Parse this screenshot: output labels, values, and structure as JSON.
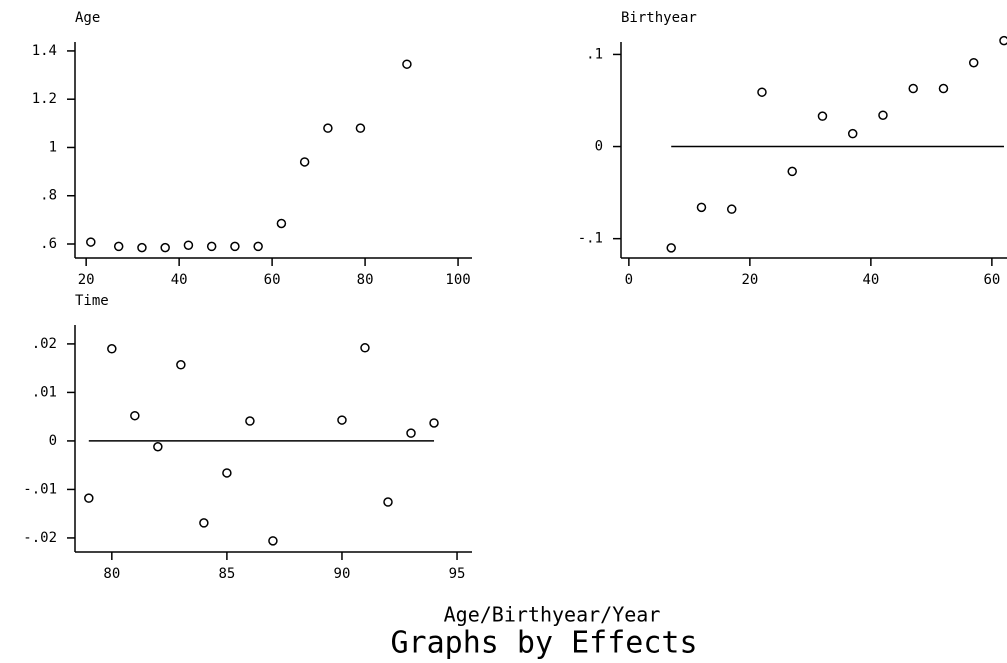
{
  "chart_data": [
    {
      "type": "scatter",
      "title": "Age",
      "x": [
        21,
        27,
        32,
        37,
        42,
        47,
        52,
        57,
        62,
        67,
        72,
        79,
        89
      ],
      "values": [
        0.608,
        0.59,
        0.585,
        0.585,
        0.595,
        0.59,
        0.59,
        0.59,
        0.685,
        0.94,
        1.08,
        1.08,
        1.345
      ],
      "color": "#000000",
      "xlim": [
        17.6,
        103
      ],
      "ylim": [
        0.542,
        1.437
      ],
      "xticks": [
        20,
        40,
        60,
        80,
        100
      ],
      "yticks": [
        {
          "value": 0.6,
          "label": ".6"
        },
        {
          "value": 0.8,
          "label": ".8"
        },
        1,
        1.2,
        1.4
      ]
    },
    {
      "type": "scatter",
      "title": "Birthyear",
      "x": [
        7,
        12,
        17,
        22,
        27,
        32,
        37,
        42,
        47,
        52,
        57,
        62
      ],
      "values": [
        -0.11,
        -0.066,
        -0.068,
        0.059,
        -0.027,
        0.033,
        0.014,
        0.034,
        0.063,
        0.063,
        0.091,
        0.115
      ],
      "color": "#000000",
      "reference_line": 0,
      "xlim": [
        -1.3,
        62.5
      ],
      "ylim": [
        -0.121,
        0.1135
      ],
      "xticks": [
        0,
        20,
        40,
        60
      ],
      "yticks": [
        {
          "value": -0.1,
          "label": "-.1"
        },
        0,
        {
          "value": 0.1,
          "label": ".1"
        }
      ]
    },
    {
      "type": "scatter",
      "title": "Time",
      "x": [
        79,
        80,
        81,
        82,
        83,
        84,
        85,
        86,
        87,
        90,
        91,
        92,
        93,
        94
      ],
      "values": [
        -0.0118,
        0.019,
        0.0052,
        -0.0012,
        0.0157,
        -0.0169,
        -0.0066,
        0.0041,
        -0.0206,
        0.0043,
        0.0192,
        -0.0126,
        0.0016,
        0.0037
      ],
      "color": "#000000",
      "reference_line": 0,
      "xlim": [
        78.4,
        95.65
      ],
      "ylim": [
        -0.0229,
        0.0239
      ],
      "xticks": [
        80,
        85,
        90,
        95
      ],
      "yticks": [
        {
          "value": -0.02,
          "label": "-.02"
        },
        {
          "value": -0.01,
          "label": "-.01"
        },
        0,
        {
          "value": 0.01,
          "label": ".01"
        },
        {
          "value": 0.02,
          "label": ".02"
        }
      ]
    }
  ],
  "x_label": "Age/Birthyear/Year",
  "caption": "Graphs by Effects"
}
